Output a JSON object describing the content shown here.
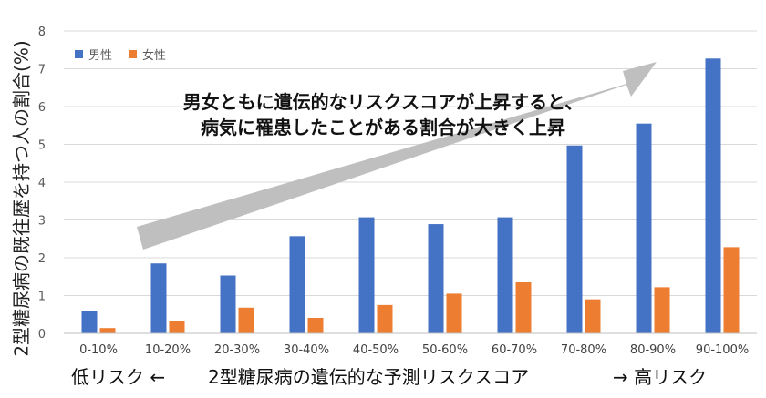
{
  "colors": {
    "male": "#4472C4",
    "female": "#ED7D31",
    "arrow": "#BFBFBF",
    "grid": "#D9D9D9"
  },
  "annotation": {
    "line1": "男女ともに遺伝的なリスクスコアが上昇すると、",
    "line2": "病気に罹患したことがある割合が大きく上昇"
  },
  "footer": {
    "left": "低リスク ←",
    "center": "2型糖尿病の遺伝的な予測リスクスコア",
    "right": "→ 高リスク"
  },
  "chart_data": {
    "type": "bar",
    "ylabel": "2型糖尿病の既往歴を持つ人の割合(%)",
    "ylim": [
      0,
      8
    ],
    "yticks": [
      0,
      1,
      2,
      3,
      4,
      5,
      6,
      7,
      8
    ],
    "categories": [
      "0-10%",
      "10-20%",
      "20-30%",
      "30-40%",
      "40-50%",
      "50-60%",
      "60-70%",
      "70-80%",
      "80-90%",
      "90-100%"
    ],
    "series": [
      {
        "name": "男性",
        "color": "#4472C4",
        "values": [
          0.6,
          1.85,
          1.53,
          2.57,
          3.07,
          2.89,
          3.07,
          4.97,
          5.55,
          7.27
        ]
      },
      {
        "name": "女性",
        "color": "#ED7D31",
        "values": [
          0.14,
          0.33,
          0.68,
          0.41,
          0.75,
          1.05,
          1.35,
          0.9,
          1.22,
          2.28
        ]
      }
    ],
    "grid": true,
    "legend": "top-left"
  }
}
